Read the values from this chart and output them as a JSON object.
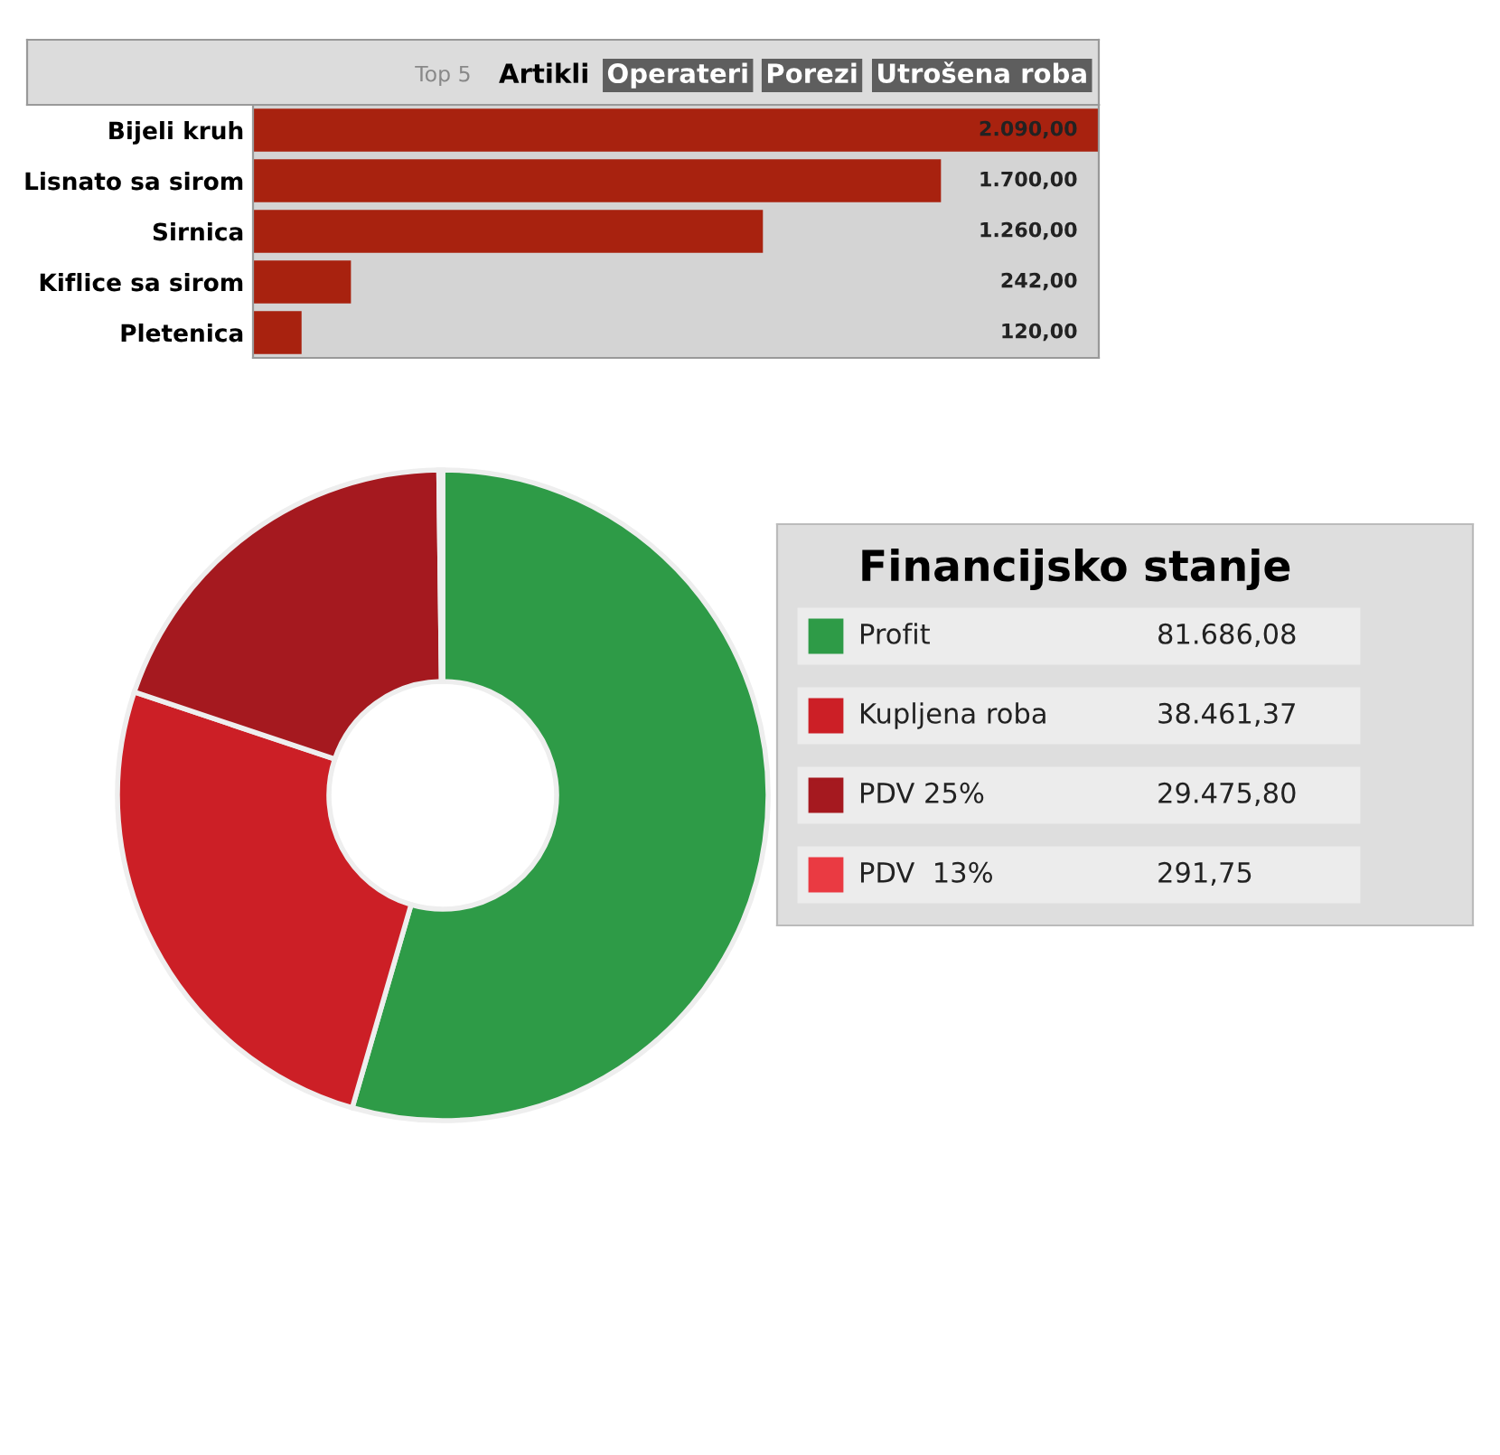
{
  "chart_data": [
    {
      "type": "bar",
      "orientation": "horizontal",
      "title": "Top 5",
      "annotations": [
        "Artikli",
        "Operateri",
        "Porezi",
        "Utrošena roba"
      ],
      "categories": [
        "Bijeli kruh",
        "Lisnato sa sirom",
        "Sirnica",
        "Kiflice sa sirom",
        "Pletenica"
      ],
      "values": [
        2090,
        1700,
        1260,
        242,
        120
      ],
      "value_labels": [
        "2.090,00",
        "1.700,00",
        "1.260,00",
        "242,00",
        "120,00"
      ],
      "color": "#a8220f"
    },
    {
      "type": "donut",
      "title": "Financijsko stanje",
      "legend": "right",
      "categories": [
        "Profit",
        "Kupljena roba",
        "PDV 25%",
        "PDV  13%"
      ],
      "values": [
        81686.08,
        38461.37,
        29475.8,
        291.75
      ],
      "value_labels": [
        "81.686,08",
        "38.461,37",
        "29.475,80",
        "291,75"
      ],
      "colors": [
        "#2e9b47",
        "#cc1f26",
        "#a5191f",
        "#ea3a42"
      ]
    }
  ]
}
